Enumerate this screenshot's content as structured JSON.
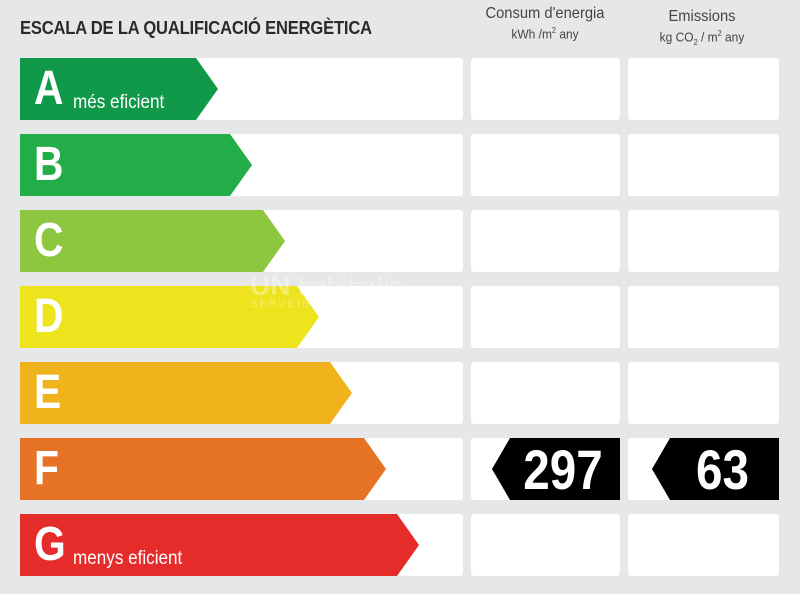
{
  "title": "ESCALA DE LA QUALIFICACIÓ ENERGÈTICA",
  "columns": {
    "energy": {
      "label": "Consum d'energia",
      "unit_prefix": "kWh /m",
      "unit_sup": "2",
      "unit_suffix": "  any"
    },
    "emissions": {
      "label": "Emissions",
      "unit_prefix": "kg CO",
      "unit_sub": "2",
      "unit_mid": " / m",
      "unit_sup": "2",
      "unit_suffix": "  any"
    }
  },
  "ratings": [
    {
      "letter": "A",
      "description": "més eficient",
      "color": "#11994a",
      "length": 0
    },
    {
      "letter": "B",
      "description": "",
      "color": "#22ad48",
      "length": 1
    },
    {
      "letter": "C",
      "description": "",
      "color": "#8dc63f",
      "length": 2
    },
    {
      "letter": "D",
      "description": "",
      "color": "#ede41d",
      "length": 3
    },
    {
      "letter": "E",
      "description": "",
      "color": "#f1b31c",
      "length": 4
    },
    {
      "letter": "F",
      "description": "",
      "color": "#e67226",
      "length": 5
    },
    {
      "letter": "G",
      "description": "menys eficient",
      "color": "#e62b2b",
      "length": 6
    }
  ],
  "current": {
    "rating": "F",
    "energy_value": "297",
    "emissions_value": "63",
    "marker_color": "#000000"
  },
  "watermark": {
    "text1": "UN",
    "text2": "habitadia",
    "text3": "SERVEIS"
  }
}
